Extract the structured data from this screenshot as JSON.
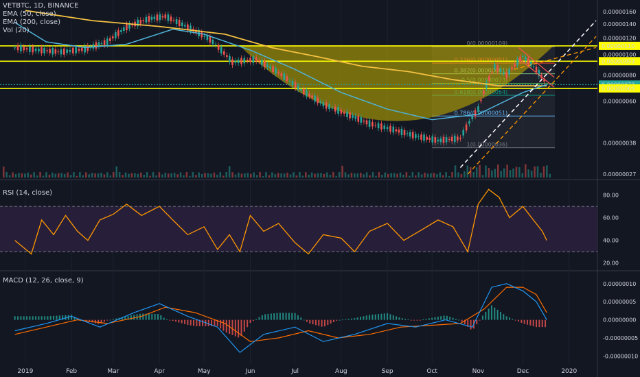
{
  "header": {
    "symbol": "VETBTC, 1D, BINANCE",
    "indicators": [
      "EMA (50, close)",
      "EMA (200, close)",
      "Vol (20)"
    ]
  },
  "rsi_label": "RSI (14, close)",
  "macd_label": "MACD (12, 26, close, 9)",
  "colors": {
    "background": "#131722",
    "up": "#26a69a",
    "down": "#ef5350",
    "ema50": "#4fb3d9",
    "ema200": "#f5c242",
    "rsi": "#ff9800",
    "macd": "#2196f3",
    "signal": "#ff6d00",
    "yellow_line": "#ffff00"
  },
  "chart_data": [
    {
      "type": "candlestick",
      "title": "VETBTC, 1D, BINANCE",
      "x_ticks": [
        "2019",
        "Feb",
        "Mar",
        "Apr",
        "May",
        "Jun",
        "Jul",
        "Aug",
        "Sep",
        "Oct",
        "Nov",
        "Dec",
        "2020"
      ],
      "y_tick_labels": [
        "0.00000160",
        "0.00000140",
        "0.00000120",
        "0.00000100",
        "0.00000080",
        "0.00000060",
        "0.00000038",
        "0.00000027"
      ],
      "y_ticks": [
        1.6e-06,
        1.4e-06,
        1.2e-06,
        1e-06,
        8e-07,
        6e-07,
        3.8e-07,
        2.7e-07
      ],
      "y_scale": "log",
      "y_range": [
        2.7e-07,
        1.6e-06
      ],
      "price_markers": [
        {
          "label": "0.00000110",
          "value": 1.1e-06,
          "color": "#ffff00"
        },
        {
          "label": "0.00000093",
          "value": 9.3e-07,
          "color": "#ffff00"
        },
        {
          "label": "0.00000072",
          "value": 7.2e-07,
          "color": "#26a69a"
        },
        {
          "label": "0.00000069",
          "value": 6.9e-07,
          "color": "#ffff00"
        }
      ],
      "fib_levels": [
        {
          "label": "0(0.00000109)",
          "value": 1.09e-06
        },
        {
          "label": "0.236(0.00000091)",
          "value": 9.1e-07
        },
        {
          "label": "0.382(0.00000081)",
          "value": 8.1e-07
        },
        {
          "label": "0.5(0.00000073)",
          "value": 7.3e-07
        },
        {
          "label": "0.618(0.00000064)",
          "value": 6.4e-07
        },
        {
          "label": "0.786(0.00000051)",
          "value": 5.1e-07
        },
        {
          "label": "1(0.00000036)",
          "value": 3.6e-07
        }
      ],
      "close_series": [
        {
          "date": "2018-12-25",
          "v": 1.08e-06
        },
        {
          "date": "2019-01-10",
          "v": 1.05e-06
        },
        {
          "date": "2019-01-25",
          "v": 1.03e-06
        },
        {
          "date": "2019-02-10",
          "v": 1.06e-06
        },
        {
          "date": "2019-02-25",
          "v": 1.15e-06
        },
        {
          "date": "2019-03-10",
          "v": 1.35e-06
        },
        {
          "date": "2019-03-25",
          "v": 1.48e-06
        },
        {
          "date": "2019-04-05",
          "v": 1.52e-06
        },
        {
          "date": "2019-04-20",
          "v": 1.35e-06
        },
        {
          "date": "2019-05-05",
          "v": 1.18e-06
        },
        {
          "date": "2019-05-20",
          "v": 9.2e-07
        },
        {
          "date": "2019-06-05",
          "v": 9.5e-07
        },
        {
          "date": "2019-06-20",
          "v": 8.2e-07
        },
        {
          "date": "2019-07-05",
          "v": 6.8e-07
        },
        {
          "date": "2019-07-20",
          "v": 5.8e-07
        },
        {
          "date": "2019-08-05",
          "v": 5.2e-07
        },
        {
          "date": "2019-08-20",
          "v": 4.7e-07
        },
        {
          "date": "2019-09-05",
          "v": 4.4e-07
        },
        {
          "date": "2019-09-20",
          "v": 4.1e-07
        },
        {
          "date": "2019-10-05",
          "v": 3.9e-07
        },
        {
          "date": "2019-10-20",
          "v": 4e-07
        },
        {
          "date": "2019-11-01",
          "v": 5.5e-07
        },
        {
          "date": "2019-11-12",
          "v": 8.8e-07
        },
        {
          "date": "2019-11-20",
          "v": 8e-07
        },
        {
          "date": "2019-12-01",
          "v": 9.8e-07
        },
        {
          "date": "2019-12-10",
          "v": 8.5e-07
        },
        {
          "date": "2019-12-17",
          "v": 7.2e-07
        }
      ],
      "ema50": [
        {
          "date": "2018-12-25",
          "v": 1.42e-06
        },
        {
          "date": "2019-01-15",
          "v": 1.15e-06
        },
        {
          "date": "2019-02-10",
          "v": 1.08e-06
        },
        {
          "date": "2019-03-10",
          "v": 1.12e-06
        },
        {
          "date": "2019-04-10",
          "v": 1.32e-06
        },
        {
          "date": "2019-05-01",
          "v": 1.25e-06
        },
        {
          "date": "2019-06-01",
          "v": 1.05e-06
        },
        {
          "date": "2019-07-01",
          "v": 8.5e-07
        },
        {
          "date": "2019-08-01",
          "v": 6.6e-07
        },
        {
          "date": "2019-09-01",
          "v": 5.5e-07
        },
        {
          "date": "2019-10-01",
          "v": 4.9e-07
        },
        {
          "date": "2019-11-01",
          "v": 5.2e-07
        },
        {
          "date": "2019-12-01",
          "v": 6.6e-07
        },
        {
          "date": "2019-12-17",
          "v": 7.2e-07
        }
      ],
      "ema200": [
        {
          "date": "2019-01-01",
          "v": 1.62e-06
        },
        {
          "date": "2019-02-15",
          "v": 1.45e-06
        },
        {
          "date": "2019-04-01",
          "v": 1.36e-06
        },
        {
          "date": "2019-05-15",
          "v": 1.25e-06
        },
        {
          "date": "2019-06-15",
          "v": 1.08e-06
        },
        {
          "date": "2019-07-15",
          "v": 9.8e-07
        },
        {
          "date": "2019-08-15",
          "v": 8.8e-07
        },
        {
          "date": "2019-09-15",
          "v": 8.3e-07
        },
        {
          "date": "2019-10-15",
          "v": 7.6e-07
        },
        {
          "date": "2019-11-15",
          "v": 7.1e-07
        },
        {
          "date": "2019-12-17",
          "v": 7.1e-07
        }
      ]
    },
    {
      "type": "line",
      "title": "RSI (14, close)",
      "y_ticks": [
        "80.00",
        "60.00",
        "40.00",
        "20.00"
      ],
      "y_range": [
        15,
        90
      ],
      "bands": [
        70,
        30
      ],
      "series": [
        {
          "values": [
            {
              "date": "2018-12-25",
              "v": 40
            },
            {
              "date": "2019-01-05",
              "v": 28
            },
            {
              "date": "2019-01-12",
              "v": 58
            },
            {
              "date": "2019-01-20",
              "v": 45
            },
            {
              "date": "2019-01-28",
              "v": 62
            },
            {
              "date": "2019-02-05",
              "v": 48
            },
            {
              "date": "2019-02-12",
              "v": 40
            },
            {
              "date": "2019-02-20",
              "v": 58
            },
            {
              "date": "2019-03-01",
              "v": 63
            },
            {
              "date": "2019-03-10",
              "v": 72
            },
            {
              "date": "2019-03-20",
              "v": 62
            },
            {
              "date": "2019-04-01",
              "v": 70
            },
            {
              "date": "2019-04-10",
              "v": 58
            },
            {
              "date": "2019-04-20",
              "v": 45
            },
            {
              "date": "2019-05-01",
              "v": 52
            },
            {
              "date": "2019-05-10",
              "v": 32
            },
            {
              "date": "2019-05-18",
              "v": 45
            },
            {
              "date": "2019-05-25",
              "v": 30
            },
            {
              "date": "2019-06-01",
              "v": 62
            },
            {
              "date": "2019-06-10",
              "v": 48
            },
            {
              "date": "2019-06-20",
              "v": 55
            },
            {
              "date": "2019-07-01",
              "v": 38
            },
            {
              "date": "2019-07-10",
              "v": 28
            },
            {
              "date": "2019-07-20",
              "v": 45
            },
            {
              "date": "2019-08-01",
              "v": 42
            },
            {
              "date": "2019-08-10",
              "v": 30
            },
            {
              "date": "2019-08-20",
              "v": 48
            },
            {
              "date": "2019-09-01",
              "v": 55
            },
            {
              "date": "2019-09-12",
              "v": 40
            },
            {
              "date": "2019-09-25",
              "v": 50
            },
            {
              "date": "2019-10-05",
              "v": 58
            },
            {
              "date": "2019-10-15",
              "v": 52
            },
            {
              "date": "2019-10-25",
              "v": 30
            },
            {
              "date": "2019-11-01",
              "v": 72
            },
            {
              "date": "2019-11-08",
              "v": 85
            },
            {
              "date": "2019-11-15",
              "v": 78
            },
            {
              "date": "2019-11-22",
              "v": 60
            },
            {
              "date": "2019-12-01",
              "v": 70
            },
            {
              "date": "2019-12-08",
              "v": 58
            },
            {
              "date": "2019-12-14",
              "v": 48
            },
            {
              "date": "2019-12-17",
              "v": 40
            }
          ]
        }
      ]
    },
    {
      "type": "line",
      "title": "MACD (12, 26, close, 9)",
      "y_ticks": [
        "0.00000010",
        "0.00000005",
        "0.00000000",
        "-0.00000005",
        "-0.00000010"
      ],
      "y_range": [
        -1.2e-07,
        1.3e-07
      ],
      "series": [
        {
          "values": [
            {
              "date": "2018-12-25",
              "v": -3e-08
            },
            {
              "date": "2019-01-15",
              "v": -1e-08
            },
            {
              "date": "2019-02-01",
              "v": 1e-08
            },
            {
              "date": "2019-02-20",
              "v": -2e-08
            },
            {
              "date": "2019-03-15",
              "v": 2e-08
            },
            {
              "date": "2019-04-01",
              "v": 4.5e-08
            },
            {
              "date": "2019-04-20",
              "v": 1e-08
            },
            {
              "date": "2019-05-10",
              "v": -2e-08
            },
            {
              "date": "2019-05-25",
              "v": -9e-08
            },
            {
              "date": "2019-06-10",
              "v": -4e-08
            },
            {
              "date": "2019-07-01",
              "v": -2e-08
            },
            {
              "date": "2019-07-20",
              "v": -6e-08
            },
            {
              "date": "2019-08-10",
              "v": -4e-08
            },
            {
              "date": "2019-09-01",
              "v": -1e-08
            },
            {
              "date": "2019-09-20",
              "v": -2e-08
            },
            {
              "date": "2019-10-10",
              "v": 0
            },
            {
              "date": "2019-10-28",
              "v": -2e-08
            },
            {
              "date": "2019-11-10",
              "v": 9e-08
            },
            {
              "date": "2019-11-20",
              "v": 1e-07
            },
            {
              "date": "2019-12-01",
              "v": 8e-08
            },
            {
              "date": "2019-12-10",
              "v": 5e-08
            },
            {
              "date": "2019-12-17",
              "v": 0
            }
          ]
        },
        {
          "values": [
            {
              "date": "2018-12-25",
              "v": -4e-08
            },
            {
              "date": "2019-01-15",
              "v": -2e-08
            },
            {
              "date": "2019-02-05",
              "v": 0
            },
            {
              "date": "2019-02-25",
              "v": -1e-08
            },
            {
              "date": "2019-03-20",
              "v": 1e-08
            },
            {
              "date": "2019-04-05",
              "v": 3.5e-08
            },
            {
              "date": "2019-04-25",
              "v": 2e-08
            },
            {
              "date": "2019-05-15",
              "v": -1e-08
            },
            {
              "date": "2019-06-01",
              "v": -6e-08
            },
            {
              "date": "2019-06-20",
              "v": -5e-08
            },
            {
              "date": "2019-07-10",
              "v": -3e-08
            },
            {
              "date": "2019-07-30",
              "v": -5e-08
            },
            {
              "date": "2019-08-20",
              "v": -4e-08
            },
            {
              "date": "2019-09-10",
              "v": -2e-08
            },
            {
              "date": "2019-09-30",
              "v": -1.5e-08
            },
            {
              "date": "2019-10-20",
              "v": -1e-08
            },
            {
              "date": "2019-11-05",
              "v": 3e-08
            },
            {
              "date": "2019-11-20",
              "v": 9e-08
            },
            {
              "date": "2019-12-01",
              "v": 9e-08
            },
            {
              "date": "2019-12-10",
              "v": 7e-08
            },
            {
              "date": "2019-12-17",
              "v": 2e-08
            }
          ]
        }
      ]
    }
  ]
}
